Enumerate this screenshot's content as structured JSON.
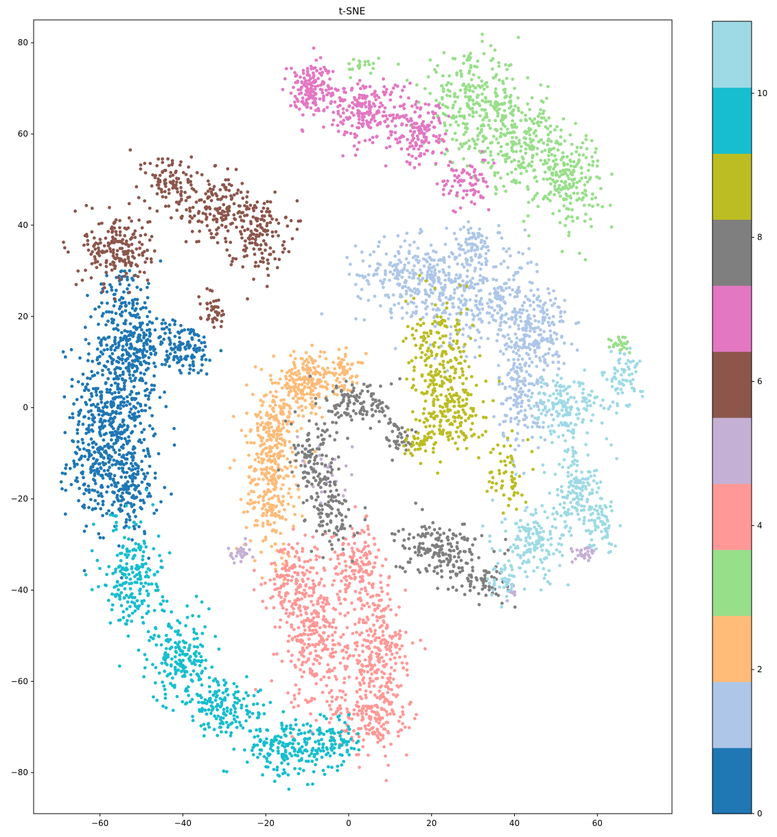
{
  "chart_data": {
    "type": "scatter",
    "title": "t-SNE",
    "xlabel": "",
    "ylabel": "",
    "xlim": [
      -76,
      78
    ],
    "ylim": [
      -89,
      85
    ],
    "xticks": [
      -60,
      -40,
      -20,
      0,
      20,
      40,
      60
    ],
    "yticks": [
      -80,
      -60,
      -40,
      -20,
      0,
      20,
      40,
      60,
      80
    ],
    "grid": false,
    "colormap": "tab20",
    "colorbar": {
      "range": [
        0,
        11
      ],
      "ticks": [
        0,
        2,
        4,
        6,
        8,
        10
      ],
      "colors": [
        "#1f77b4",
        "#aec7e8",
        "#ffbb78",
        "#98df8a",
        "#ff9896",
        "#c5b0d5",
        "#8c564b",
        "#e377c2",
        "#7f7f7f",
        "#bcbd22",
        "#17becf",
        "#9edae5"
      ]
    },
    "series": [
      {
        "name": "0",
        "color": "#1f77b4",
        "clusters": [
          {
            "cx": -56,
            "cy": 2,
            "sx": 5,
            "sy": 9,
            "n": 420
          },
          {
            "cx": -60,
            "cy": -12,
            "sx": 4,
            "sy": 6,
            "n": 200
          },
          {
            "cx": -53,
            "cy": -18,
            "sx": 3.5,
            "sy": 5,
            "n": 160
          },
          {
            "cx": -52,
            "cy": 15,
            "sx": 4,
            "sy": 5,
            "n": 180
          },
          {
            "cx": -40,
            "cy": 13,
            "sx": 4,
            "sy": 3,
            "n": 130
          },
          {
            "cx": -55,
            "cy": 25,
            "sx": 3,
            "sy": 3,
            "n": 60
          }
        ]
      },
      {
        "name": "1",
        "color": "#aec7e8",
        "clusters": [
          {
            "cx": 16,
            "cy": 29,
            "sx": 7,
            "sy": 4,
            "n": 270
          },
          {
            "cx": 32,
            "cy": 24,
            "sx": 7,
            "sy": 6,
            "n": 300
          },
          {
            "cx": 45,
            "cy": 17,
            "sx": 4,
            "sy": 5,
            "n": 200
          },
          {
            "cx": 42,
            "cy": 3,
            "sx": 3,
            "sy": 6,
            "n": 160
          },
          {
            "cx": 30,
            "cy": 36,
            "sx": 2.5,
            "sy": 2,
            "n": 60
          }
        ]
      },
      {
        "name": "2",
        "color": "#ffbb78",
        "clusters": [
          {
            "cx": -19,
            "cy": -17,
            "sx": 3,
            "sy": 8,
            "n": 260
          },
          {
            "cx": -17,
            "cy": -3,
            "sx": 3.5,
            "sy": 5,
            "n": 160
          },
          {
            "cx": -10,
            "cy": 6,
            "sx": 4,
            "sy": 3,
            "n": 180
          },
          {
            "cx": -1,
            "cy": 8,
            "sx": 2.5,
            "sy": 2,
            "n": 50
          }
        ]
      },
      {
        "name": "3",
        "color": "#98df8a",
        "clusters": [
          {
            "cx": 30,
            "cy": 67,
            "sx": 6,
            "sy": 5,
            "n": 260
          },
          {
            "cx": 41,
            "cy": 58,
            "sx": 6,
            "sy": 5,
            "n": 260
          },
          {
            "cx": 53,
            "cy": 50,
            "sx": 4,
            "sy": 5,
            "n": 200
          },
          {
            "cx": 66,
            "cy": 14,
            "sx": 1.5,
            "sy": 1,
            "n": 25
          },
          {
            "cx": 3,
            "cy": 75,
            "sx": 2,
            "sy": 1,
            "n": 20
          }
        ]
      },
      {
        "name": "4",
        "color": "#ff9896",
        "clusters": [
          {
            "cx": -8,
            "cy": -50,
            "sx": 4,
            "sy": 8,
            "n": 320
          },
          {
            "cx": 7,
            "cy": -56,
            "sx": 3.5,
            "sy": 9,
            "n": 320
          },
          {
            "cx": 2,
            "cy": -34,
            "sx": 3,
            "sy": 4,
            "n": 140
          },
          {
            "cx": -14,
            "cy": -37,
            "sx": 3,
            "sy": 4,
            "n": 120
          },
          {
            "cx": 4,
            "cy": -68,
            "sx": 5,
            "sy": 3,
            "n": 120
          }
        ]
      },
      {
        "name": "5",
        "color": "#c5b0d5",
        "clusters": [
          {
            "cx": -26,
            "cy": -32,
            "sx": 1.5,
            "sy": 1,
            "n": 30
          },
          {
            "cx": 57,
            "cy": -32,
            "sx": 1.5,
            "sy": 1,
            "n": 30
          },
          {
            "cx": 40,
            "cy": -40,
            "sx": 1,
            "sy": 1,
            "n": 10
          },
          {
            "cx": -6,
            "cy": -14,
            "sx": 4,
            "sy": 4,
            "n": 30
          }
        ]
      },
      {
        "name": "6",
        "color": "#8c564b",
        "clusters": [
          {
            "cx": -56,
            "cy": 35,
            "sx": 4,
            "sy": 4,
            "n": 200
          },
          {
            "cx": -43,
            "cy": 50,
            "sx": 3,
            "sy": 3,
            "n": 80
          },
          {
            "cx": -32,
            "cy": 44,
            "sx": 5,
            "sy": 4,
            "n": 180
          },
          {
            "cx": -22,
            "cy": 38,
            "sx": 3.5,
            "sy": 4,
            "n": 140
          },
          {
            "cx": -33,
            "cy": 22,
            "sx": 1.5,
            "sy": 2,
            "n": 40
          }
        ]
      },
      {
        "name": "7",
        "color": "#e377c2",
        "clusters": [
          {
            "cx": -9,
            "cy": 70,
            "sx": 3,
            "sy": 3,
            "n": 160
          },
          {
            "cx": 4,
            "cy": 65,
            "sx": 5,
            "sy": 3.5,
            "n": 200
          },
          {
            "cx": 17,
            "cy": 60,
            "sx": 3.5,
            "sy": 3.5,
            "n": 140
          },
          {
            "cx": 28,
            "cy": 49,
            "sx": 3,
            "sy": 3,
            "n": 80
          }
        ]
      },
      {
        "name": "8",
        "color": "#7f7f7f",
        "clusters": [
          {
            "cx": 3,
            "cy": 1,
            "sx": 4,
            "sy": 2.5,
            "n": 110
          },
          {
            "cx": 12,
            "cy": -6,
            "sx": 2,
            "sy": 2,
            "n": 40
          },
          {
            "cx": -8,
            "cy": -12,
            "sx": 3,
            "sy": 5,
            "n": 120
          },
          {
            "cx": -4,
            "cy": -24,
            "sx": 2.5,
            "sy": 4,
            "n": 90
          },
          {
            "cx": 22,
            "cy": -31,
            "sx": 5,
            "sy": 3,
            "n": 180
          },
          {
            "cx": 32,
            "cy": -38,
            "sx": 3,
            "sy": 2,
            "n": 60
          }
        ]
      },
      {
        "name": "9",
        "color": "#bcbd22",
        "clusters": [
          {
            "cx": 22,
            "cy": 10,
            "sx": 4,
            "sy": 6,
            "n": 200
          },
          {
            "cx": 25,
            "cy": -2,
            "sx": 4,
            "sy": 4,
            "n": 160
          },
          {
            "cx": 38,
            "cy": -14,
            "sx": 2,
            "sy": 4,
            "n": 60
          },
          {
            "cx": 17,
            "cy": -7,
            "sx": 2,
            "sy": 2,
            "n": 40
          }
        ]
      },
      {
        "name": "10",
        "color": "#17becf",
        "clusters": [
          {
            "cx": -52,
            "cy": -37,
            "sx": 3.5,
            "sy": 6,
            "n": 220
          },
          {
            "cx": -40,
            "cy": -55,
            "sx": 4,
            "sy": 5,
            "n": 200
          },
          {
            "cx": -29,
            "cy": -66,
            "sx": 5,
            "sy": 3,
            "n": 160
          },
          {
            "cx": -14,
            "cy": -75,
            "sx": 5,
            "sy": 3,
            "n": 180
          },
          {
            "cx": -3,
            "cy": -73,
            "sx": 3,
            "sy": 3,
            "n": 80
          }
        ]
      },
      {
        "name": "11",
        "color": "#9edae5",
        "clusters": [
          {
            "cx": 52,
            "cy": 0,
            "sx": 4,
            "sy": 4,
            "n": 160
          },
          {
            "cx": 66,
            "cy": 6,
            "sx": 2.5,
            "sy": 3,
            "n": 70
          },
          {
            "cx": 55,
            "cy": -18,
            "sx": 3,
            "sy": 4,
            "n": 140
          },
          {
            "cx": 45,
            "cy": -30,
            "sx": 4,
            "sy": 4,
            "n": 160
          },
          {
            "cx": 61,
            "cy": -26,
            "sx": 2,
            "sy": 3,
            "n": 60
          },
          {
            "cx": 38,
            "cy": -38,
            "sx": 2,
            "sy": 2,
            "n": 40
          }
        ]
      }
    ]
  }
}
